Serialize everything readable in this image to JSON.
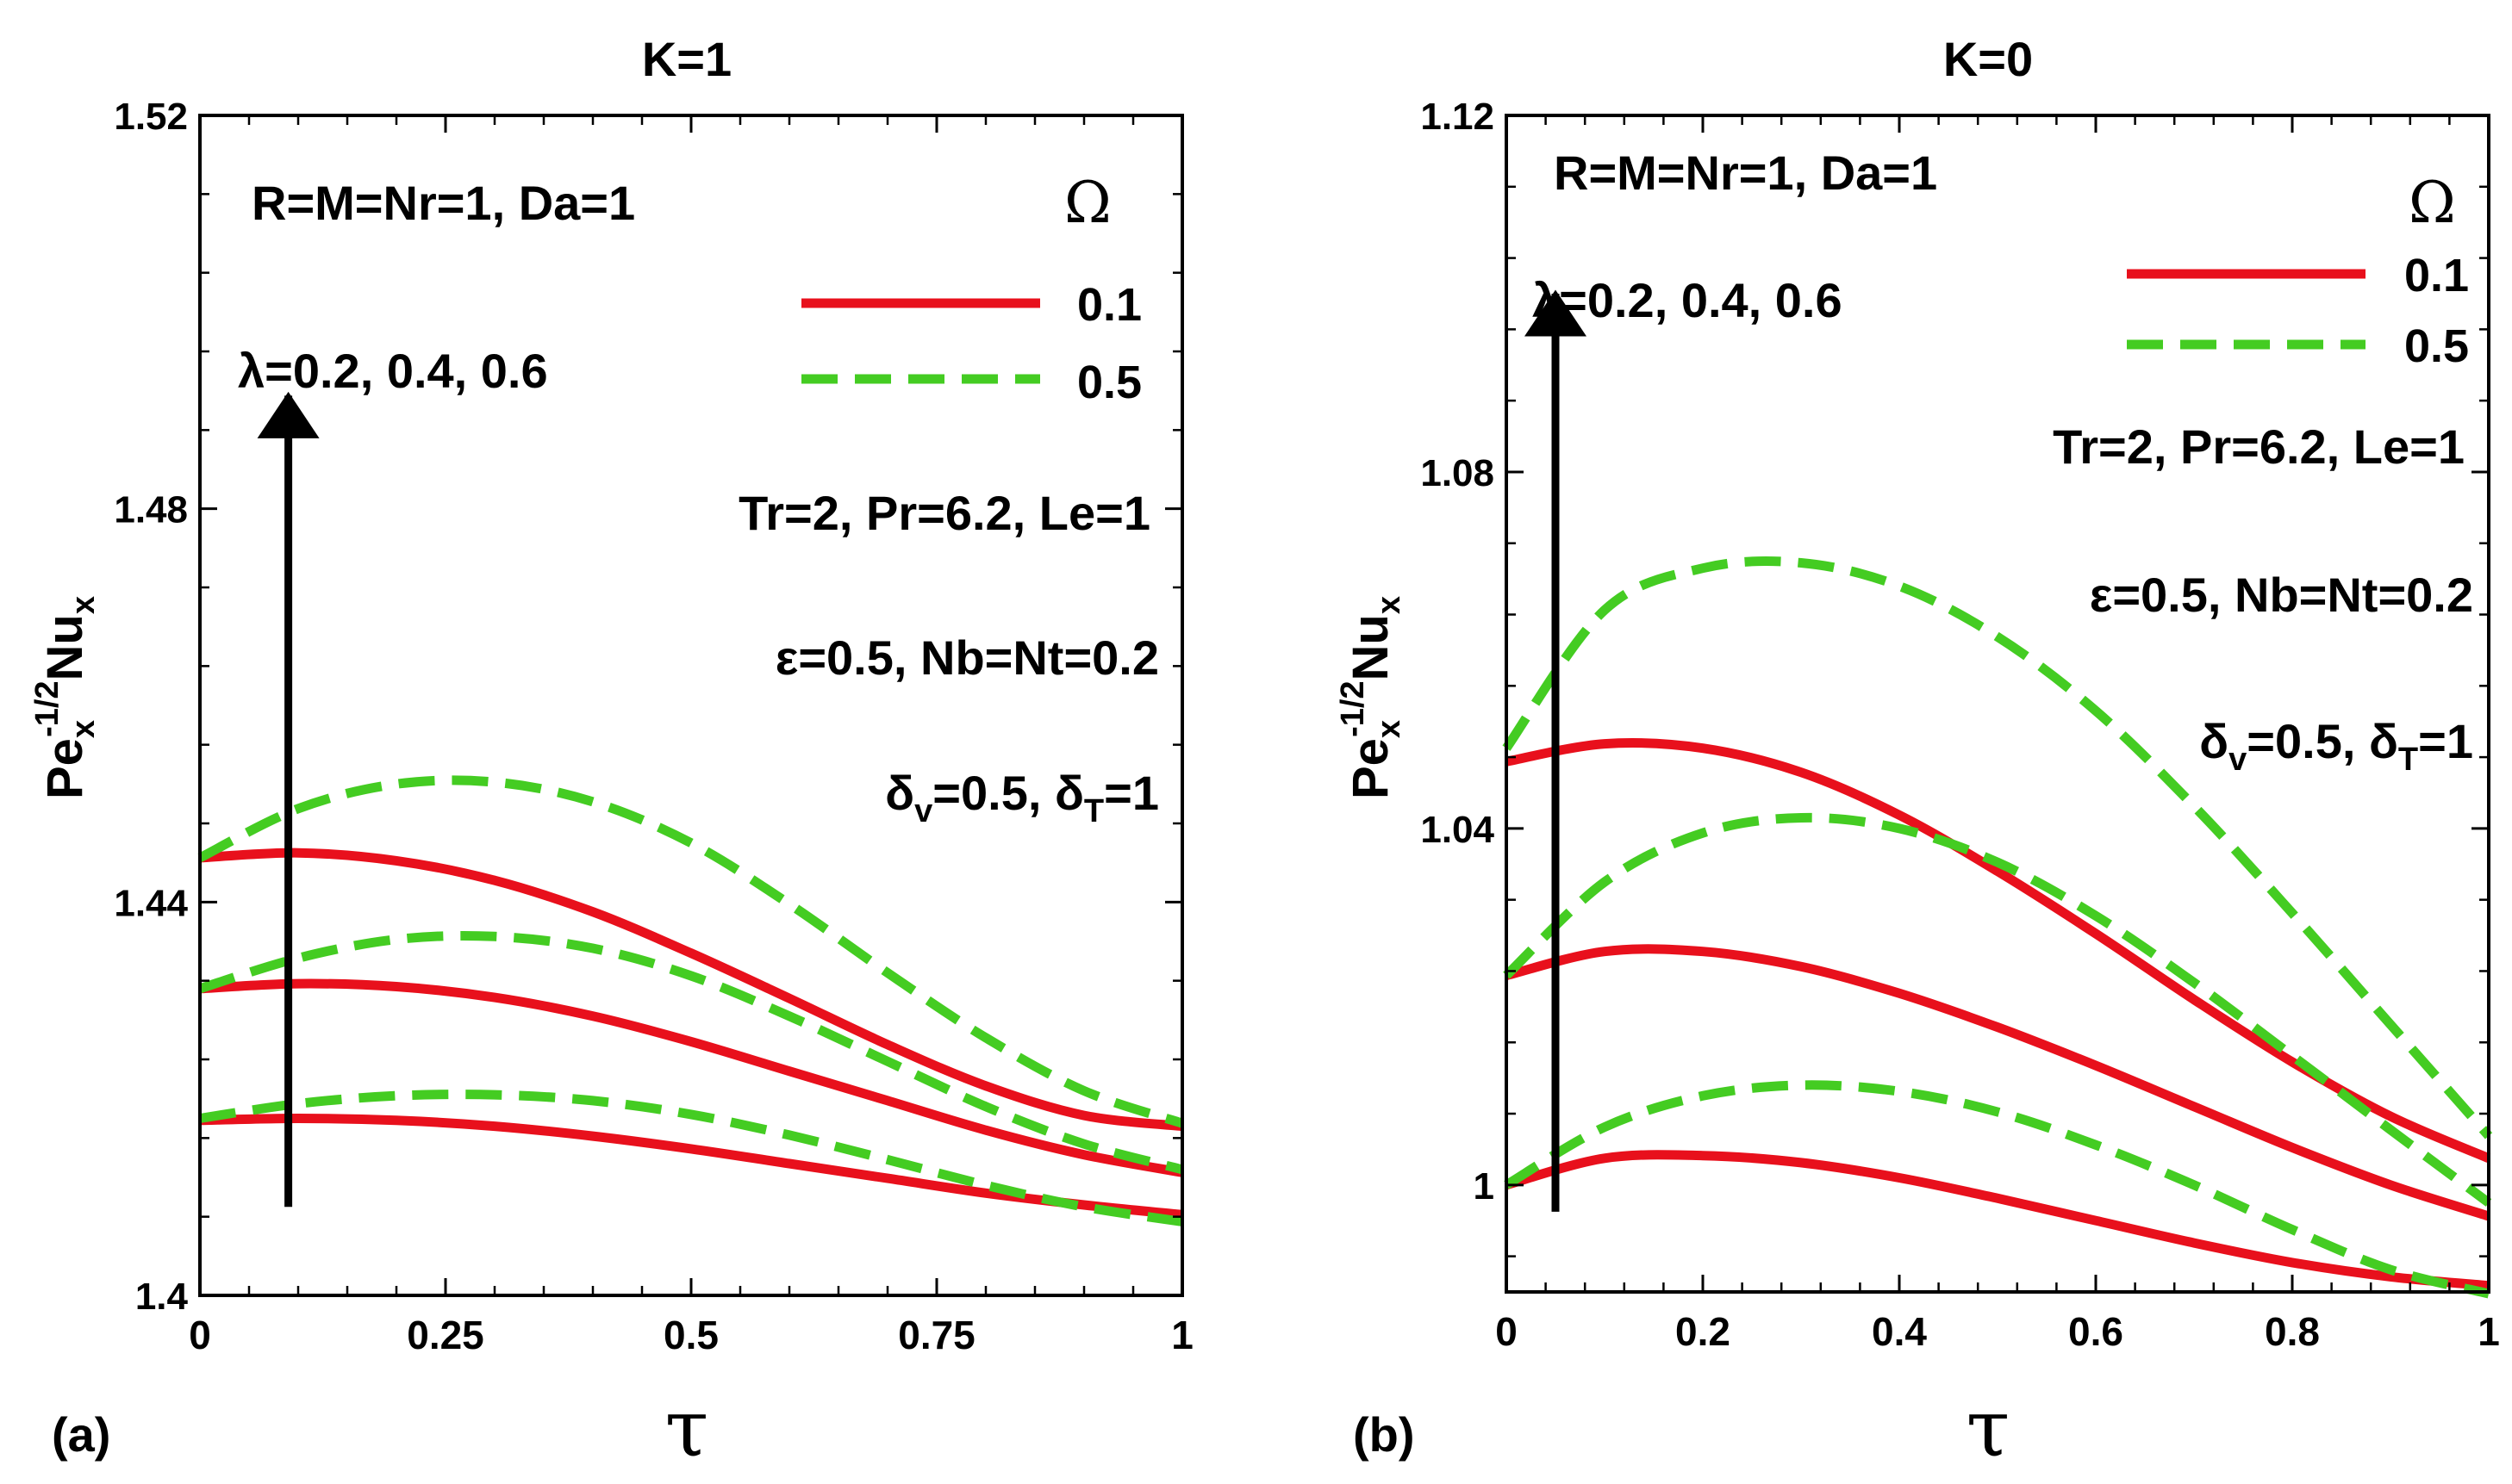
{
  "colors": {
    "omega_0_1": "#e8101c",
    "omega_0_5": "#44cc22",
    "axis": "#000000",
    "arrow": "#000000"
  },
  "chart_data": [
    {
      "panel_label": "(a)",
      "type": "line",
      "title": "K=1",
      "xlabel": "τ",
      "ylabel_parts": {
        "base": "Pe",
        "sub1": "x",
        "sup": "-1/2",
        "base2": "Nu",
        "sub2": "x"
      },
      "xlim": [
        0,
        1
      ],
      "ylim": [
        1.4,
        1.52
      ],
      "x_ticks": [
        0,
        0.25,
        0.5,
        0.75,
        1
      ],
      "x_tick_labels": [
        "0",
        "0.25",
        "0.5",
        "0.75",
        "1"
      ],
      "y_ticks": [
        1.4,
        1.44,
        1.48,
        1.52
      ],
      "y_tick_labels": [
        "1.4",
        "1.44",
        "1.48",
        "1.52"
      ],
      "legend": {
        "title": "Ω",
        "entries": [
          {
            "label": "0.1",
            "style": "solid"
          },
          {
            "label": "0.5",
            "style": "dashed"
          }
        ]
      },
      "annotations": {
        "params1": "R=M=Nr=1, Da=1",
        "lambda": "λ=0.2, 0.4, 0.6",
        "params2": "Tr=2, Pr=6.2, Le=1",
        "eps": "ε=0.5, Nb=Nt=0.2",
        "delta": {
          "d1": "δ",
          "s1": "v",
          "mid": "=0.5, ",
          "d2": "δ",
          "s2": "T",
          "end": "=1"
        }
      },
      "arrow": {
        "x": 0.09,
        "y_from": 1.409,
        "y_to": 1.4915
      },
      "x": [
        0,
        0.1,
        0.2,
        0.3,
        0.4,
        0.5,
        0.6,
        0.7,
        0.8,
        0.9,
        1
      ],
      "series": [
        {
          "omega": "0.1",
          "lambda": 0.2,
          "style": "solid",
          "y": [
            1.4178,
            1.418,
            1.4178,
            1.4172,
            1.4162,
            1.4149,
            1.4134,
            1.4119,
            1.4104,
            1.4092,
            1.4082
          ]
        },
        {
          "omega": "0.1",
          "lambda": 0.4,
          "style": "solid",
          "y": [
            1.4312,
            1.4317,
            1.4314,
            1.4303,
            1.4284,
            1.4258,
            1.4228,
            1.4198,
            1.4168,
            1.4143,
            1.4125
          ]
        },
        {
          "omega": "0.1",
          "lambda": 0.6,
          "style": "solid",
          "y": [
            1.4445,
            1.445,
            1.4442,
            1.4422,
            1.439,
            1.4348,
            1.4302,
            1.4255,
            1.4213,
            1.4183,
            1.4172
          ]
        },
        {
          "omega": "0.5",
          "lambda": 0.2,
          "style": "dashed",
          "y": [
            1.418,
            1.4195,
            1.4203,
            1.4204,
            1.4198,
            1.4184,
            1.4163,
            1.4138,
            1.4112,
            1.409,
            1.4075
          ]
        },
        {
          "omega": "0.5",
          "lambda": 0.4,
          "style": "dashed",
          "y": [
            1.4312,
            1.4343,
            1.4362,
            1.4365,
            1.4353,
            1.4325,
            1.4284,
            1.4238,
            1.4192,
            1.4154,
            1.4128
          ]
        },
        {
          "omega": "0.5",
          "lambda": 0.6,
          "style": "dashed",
          "y": [
            1.4445,
            1.4495,
            1.452,
            1.4522,
            1.4502,
            1.446,
            1.4398,
            1.4328,
            1.4262,
            1.4208,
            1.4175
          ]
        }
      ]
    },
    {
      "panel_label": "(b)",
      "type": "line",
      "title": "K=0",
      "xlabel": "τ",
      "ylabel_parts": {
        "base": "Pe",
        "sub1": "x",
        "sup": "-1/2",
        "base2": "Nu",
        "sub2": "x"
      },
      "xlim": [
        0,
        1
      ],
      "ylim": [
        0.988,
        1.12
      ],
      "x_ticks": [
        0,
        0.2,
        0.4,
        0.6,
        0.8,
        1
      ],
      "x_tick_labels": [
        "0",
        "0.2",
        "0.4",
        "0.6",
        "0.8",
        "1"
      ],
      "y_ticks": [
        1,
        1.04,
        1.08,
        1.12
      ],
      "y_tick_labels": [
        "1",
        "1.04",
        "1.08",
        "1.12"
      ],
      "legend": {
        "title": "Ω",
        "entries": [
          {
            "label": "0.1",
            "style": "solid"
          },
          {
            "label": "0.5",
            "style": "dashed"
          }
        ]
      },
      "annotations": {
        "params1": "R=M=Nr=1, Da=1",
        "lambda": "λ=0.2, 0.4, 0.6",
        "params2": "Tr=2, Pr=6.2, Le=1",
        "eps": "ε=0.5, Nb=Nt=0.2",
        "delta": {
          "d1": "δ",
          "s1": "v",
          "mid": "=0.5, ",
          "d2": "δ",
          "s2": "T",
          "end": "=1"
        }
      },
      "arrow": {
        "x": 0.05,
        "y_from": 0.997,
        "y_to": 1.1
      },
      "x": [
        0,
        0.1,
        0.2,
        0.3,
        0.4,
        0.5,
        0.6,
        0.7,
        0.8,
        0.9,
        1
      ],
      "series": [
        {
          "omega": "0.1",
          "lambda": 0.2,
          "style": "solid",
          "y": [
            1.0,
            1.003,
            1.0033,
            1.0025,
            1.0008,
            0.9985,
            0.996,
            0.9935,
            0.9913,
            0.9897,
            0.9887
          ]
        },
        {
          "omega": "0.1",
          "lambda": 0.4,
          "style": "solid",
          "y": [
            1.0235,
            1.0262,
            1.0262,
            1.0245,
            1.0215,
            1.0177,
            1.0134,
            1.0088,
            1.0042,
            1.0,
            0.9965
          ]
        },
        {
          "omega": "0.1",
          "lambda": 0.6,
          "style": "solid",
          "y": [
            1.0475,
            1.0495,
            1.049,
            1.0463,
            1.0415,
            1.0352,
            1.0282,
            1.0208,
            1.0138,
            1.0077,
            1.003
          ]
        },
        {
          "omega": "0.5",
          "lambda": 0.2,
          "style": "dashed",
          "y": [
            1.0,
            1.0065,
            1.01,
            1.0112,
            1.0105,
            1.0082,
            1.0045,
            1.0,
            0.995,
            0.9905,
            0.9878
          ]
        },
        {
          "omega": "0.5",
          "lambda": 0.4,
          "style": "dashed",
          "y": [
            1.0235,
            1.034,
            1.0395,
            1.0412,
            1.04,
            1.0362,
            1.0302,
            1.0227,
            1.0145,
            1.0062,
            0.998
          ]
        },
        {
          "omega": "0.5",
          "lambda": 0.6,
          "style": "dashed",
          "y": [
            1.049,
            1.0645,
            1.0692,
            1.0698,
            1.0672,
            1.0615,
            1.0532,
            1.0425,
            1.0305,
            1.018,
            1.0055
          ]
        }
      ]
    }
  ]
}
